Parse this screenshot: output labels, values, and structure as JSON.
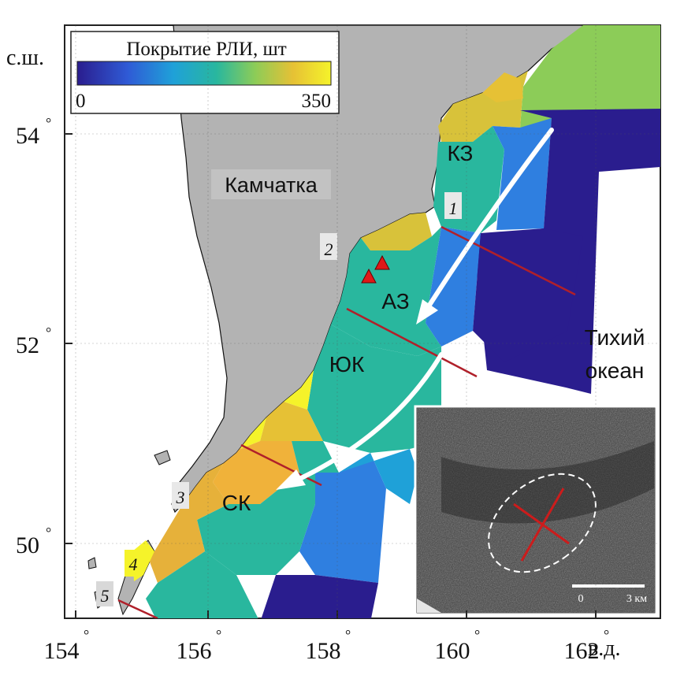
{
  "map": {
    "lat_axis_label": "с.ш.",
    "lon_axis_label": "в.д.",
    "lat_ticks": [
      "54",
      "52",
      "50"
    ],
    "lon_ticks": [
      "154",
      "156",
      "158",
      "160",
      "162"
    ],
    "degree_symbol": "°"
  },
  "legend": {
    "title": "Покрытие РЛИ, шт",
    "min": "0",
    "max": "350",
    "colors": [
      "#2a1d8e",
      "#2f5bd6",
      "#1fa1d8",
      "#29b79e",
      "#8ccc58",
      "#e6c135",
      "#f5f32a"
    ]
  },
  "labels": {
    "land": "Камчатка",
    "ocean": "Тихий океан",
    "zones": [
      "КЗ",
      "АЗ",
      "ЮК",
      "СК"
    ],
    "points": [
      "1",
      "2",
      "3",
      "4",
      "5"
    ]
  },
  "inset": {
    "scale_start": "0",
    "scale_end": "3 км"
  },
  "colors": {
    "land": "#b3b3b3",
    "section_line": "#b0202a",
    "arrow": "#ffffff",
    "volcano": "#e01818"
  }
}
